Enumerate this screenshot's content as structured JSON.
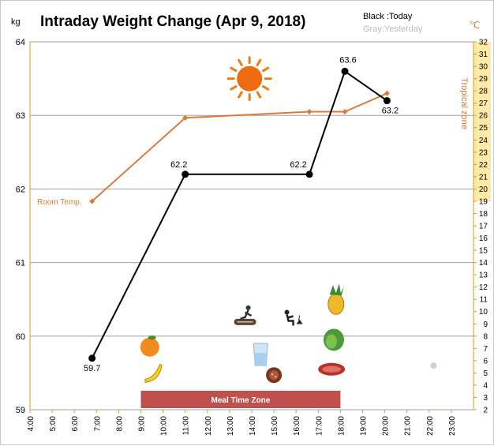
{
  "chart_data": {
    "type": "line",
    "title": "Intraday Weight Change (Apr 9, 2018)",
    "legend": {
      "today": "Black :Today",
      "yesterday": "Gray:Yesterday"
    },
    "y_left": {
      "unit": "kg",
      "min": 59,
      "max": 64,
      "ticks": [
        "59",
        "60",
        "61",
        "62",
        "63",
        "64"
      ]
    },
    "y_right": {
      "unit": "℃",
      "min": 2,
      "max": 32,
      "ticks": [
        "2",
        "3",
        "4",
        "5",
        "6",
        "7",
        "8",
        "9",
        "10",
        "11",
        "12",
        "13",
        "14",
        "15",
        "16",
        "17",
        "18",
        "19",
        "20",
        "21",
        "22",
        "23",
        "24",
        "25",
        "26",
        "27",
        "28",
        "29",
        "30",
        "31",
        "32"
      ]
    },
    "x": {
      "min": 4,
      "max": 24,
      "ticks": [
        "4:00",
        "5:00",
        "6:00",
        "7:00",
        "8:00",
        "9:00",
        "10:00",
        "11:00",
        "12:00",
        "13:00",
        "14:00",
        "15:00",
        "16:00",
        "17:00",
        "18:00",
        "19:00",
        "20:00",
        "21:00",
        "22:00",
        "23:00"
      ]
    },
    "grid": true,
    "series": [
      {
        "key": "weight",
        "color": "#000000",
        "points": [
          {
            "x": 6.8,
            "y": 59.7,
            "label": "59.7"
          },
          {
            "x": 11.0,
            "y": 62.2,
            "label": "62.2"
          },
          {
            "x": 16.6,
            "y": 62.2,
            "label": "62.2"
          },
          {
            "x": 18.2,
            "y": 63.6,
            "label": "63.6"
          },
          {
            "x": 20.1,
            "y": 63.2,
            "label": "63.2"
          }
        ]
      },
      {
        "key": "temperature",
        "color": "#d97a3a",
        "points": [
          {
            "x": 6.8,
            "y": 19
          },
          {
            "x": 11.0,
            "y": 25.8
          },
          {
            "x": 16.6,
            "y": 26.3
          },
          {
            "x": 18.2,
            "y": 26.3
          },
          {
            "x": 20.1,
            "y": 27.8
          }
        ]
      }
    ],
    "stray_marker": {
      "x": 22.2,
      "y": 59.6
    },
    "annotations": {
      "room_temp": "Room Temp.",
      "tropical_zone": "Tropical zone",
      "tropical_range": [
        19,
        32
      ],
      "meal_zone": {
        "label": "Meal Time Zone",
        "start": 9.0,
        "end": 18.0
      }
    },
    "colors": {
      "temperature": "#d97a3a",
      "tropical_fill": "#fde9a8",
      "meal_zone": "#c0504d",
      "gridline": "#a0a0a0"
    },
    "icons": [
      {
        "name": "sun-icon",
        "x": 13.9,
        "y": 63.5
      },
      {
        "name": "orange-icon",
        "x": 9.4,
        "y": 59.85
      },
      {
        "name": "banana-icon",
        "x": 9.55,
        "y": 59.5
      },
      {
        "name": "exercise-roller-icon",
        "x": 13.7,
        "y": 60.3
      },
      {
        "name": "garden-work-icon",
        "x": 15.8,
        "y": 60.25
      },
      {
        "name": "pineapple-icon",
        "x": 17.8,
        "y": 60.5
      },
      {
        "name": "lettuce-icon",
        "x": 17.7,
        "y": 59.95
      },
      {
        "name": "water-glass-icon",
        "x": 14.4,
        "y": 59.75
      },
      {
        "name": "sausage-icon",
        "x": 15.0,
        "y": 59.47
      },
      {
        "name": "steak-icon",
        "x": 17.6,
        "y": 59.55
      }
    ]
  }
}
